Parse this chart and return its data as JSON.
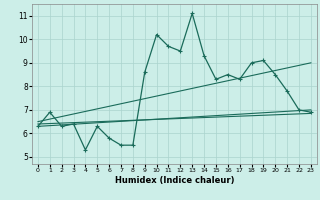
{
  "title": "",
  "xlabel": "Humidex (Indice chaleur)",
  "x": [
    0,
    1,
    2,
    3,
    4,
    5,
    6,
    7,
    8,
    9,
    10,
    11,
    12,
    13,
    14,
    15,
    16,
    17,
    18,
    19,
    20,
    21,
    22,
    23
  ],
  "line1": [
    6.3,
    6.9,
    6.3,
    6.4,
    5.3,
    6.3,
    5.8,
    5.5,
    5.5,
    8.6,
    10.2,
    9.7,
    9.5,
    11.1,
    9.3,
    8.3,
    8.5,
    8.3,
    9.0,
    9.1,
    8.5,
    7.8,
    7.0,
    6.9
  ],
  "line2_x": [
    0,
    23
  ],
  "line2_y": [
    6.5,
    9.0
  ],
  "line3_x": [
    0,
    23
  ],
  "line3_y": [
    6.3,
    7.0
  ],
  "line4_x": [
    0,
    23
  ],
  "line4_y": [
    6.4,
    6.85
  ],
  "bg_color": "#cceee8",
  "grid_color": "#aad4ce",
  "line_color": "#1a6b5a",
  "ylim": [
    4.7,
    11.5
  ],
  "xlim": [
    -0.5,
    23.5
  ],
  "yticks": [
    5,
    6,
    7,
    8,
    9,
    10,
    11
  ],
  "xticks": [
    0,
    1,
    2,
    3,
    4,
    5,
    6,
    7,
    8,
    9,
    10,
    11,
    12,
    13,
    14,
    15,
    16,
    17,
    18,
    19,
    20,
    21,
    22,
    23
  ]
}
